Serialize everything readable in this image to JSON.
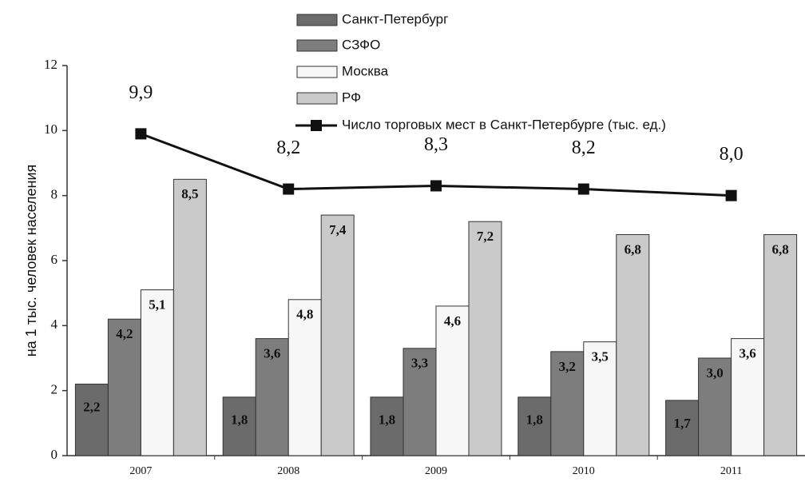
{
  "chart_data": {
    "type": "bar",
    "y_label": "на 1 тыс. человек населения",
    "categories": [
      "2007",
      "2008",
      "2009",
      "2010",
      "2011"
    ],
    "ylim": [
      0,
      12
    ],
    "yticks": [
      0,
      2,
      4,
      6,
      8,
      10,
      12
    ],
    "series": [
      {
        "name": "Санкт-Петербург",
        "color": "#6b6b6b",
        "values": [
          2.2,
          1.8,
          1.8,
          1.8,
          1.7
        ],
        "value_labels": [
          "2,2",
          "1,8",
          "1,8",
          "1,8",
          "1,7"
        ]
      },
      {
        "name": "СЗФО",
        "color": "#7d7d7d",
        "values": [
          4.2,
          3.6,
          3.3,
          3.2,
          3.0
        ],
        "value_labels": [
          "4,2",
          "3,6",
          "3,3",
          "3,2",
          "3,0"
        ]
      },
      {
        "name": "Москва",
        "color": "#f7f7f7",
        "values": [
          5.1,
          4.8,
          4.6,
          3.5,
          3.6
        ],
        "value_labels": [
          "5,1",
          "4,8",
          "4,6",
          "3,5",
          "3,6"
        ]
      },
      {
        "name": "РФ",
        "color": "#cacaca",
        "values": [
          8.5,
          7.4,
          7.2,
          6.8,
          6.8
        ],
        "value_labels": [
          "8,5",
          "7,4",
          "7,2",
          "6,8",
          "6,8"
        ]
      },
      {
        "name": "Число торговых мест в Санкт-Петербурге (тыс. ед.)",
        "type": "line",
        "color": "#111111",
        "values": [
          9.9,
          8.2,
          8.3,
          8.2,
          8.0
        ],
        "value_labels": [
          "9,9",
          "8,2",
          "8,3",
          "8,2",
          "8,0"
        ]
      }
    ]
  }
}
